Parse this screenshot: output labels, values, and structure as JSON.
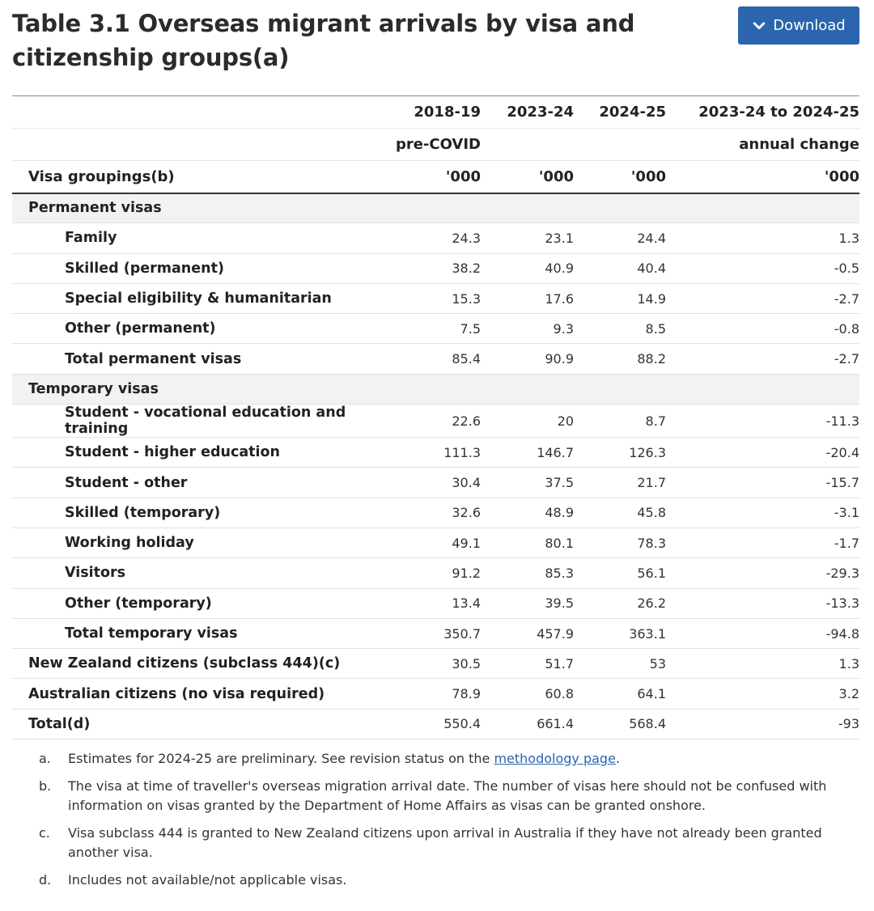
{
  "title": "Table 3.1 Overseas migrant arrivals by visa and citizenship groups(a)",
  "download": {
    "label": "Download",
    "icon": "chevron-down-icon"
  },
  "header": {
    "years": [
      "2018-19",
      "2023-24",
      "2024-25",
      "2023-24 to 2024-25"
    ],
    "sub": [
      "pre-COVID",
      "",
      "",
      "annual change"
    ],
    "row_label": "Visa groupings(b)",
    "units": [
      "'000",
      "'000",
      "'000",
      "'000"
    ]
  },
  "rows": [
    {
      "label": "Permanent visas",
      "kind": "section",
      "values": [
        "",
        "",
        "",
        ""
      ]
    },
    {
      "label": "Family",
      "kind": "item",
      "values": [
        "24.3",
        "23.1",
        "24.4",
        "1.3"
      ]
    },
    {
      "label": "Skilled (permanent)",
      "kind": "item",
      "values": [
        "38.2",
        "40.9",
        "40.4",
        "-0.5"
      ]
    },
    {
      "label": "Special eligibility & humanitarian",
      "kind": "item",
      "values": [
        "15.3",
        "17.6",
        "14.9",
        "-2.7"
      ]
    },
    {
      "label": "Other (permanent)",
      "kind": "item",
      "values": [
        "7.5",
        "9.3",
        "8.5",
        "-0.8"
      ]
    },
    {
      "label": "Total permanent visas",
      "kind": "item",
      "values": [
        "85.4",
        "90.9",
        "88.2",
        "-2.7"
      ]
    },
    {
      "label": "Temporary visas",
      "kind": "section",
      "values": [
        "",
        "",
        "",
        ""
      ]
    },
    {
      "label": "Student - vocational education and training",
      "kind": "item",
      "values": [
        "22.6",
        "20",
        "8.7",
        "-11.3"
      ]
    },
    {
      "label": "Student - higher education",
      "kind": "item",
      "values": [
        "111.3",
        "146.7",
        "126.3",
        "-20.4"
      ]
    },
    {
      "label": "Student - other",
      "kind": "item",
      "values": [
        "30.4",
        "37.5",
        "21.7",
        "-15.7"
      ]
    },
    {
      "label": "Skilled (temporary)",
      "kind": "item",
      "values": [
        "32.6",
        "48.9",
        "45.8",
        "-3.1"
      ]
    },
    {
      "label": "Working holiday",
      "kind": "item",
      "values": [
        "49.1",
        "80.1",
        "78.3",
        "-1.7"
      ]
    },
    {
      "label": "Visitors",
      "kind": "item",
      "values": [
        "91.2",
        "85.3",
        "56.1",
        "-29.3"
      ]
    },
    {
      "label": "Other (temporary)",
      "kind": "item",
      "values": [
        "13.4",
        "39.5",
        "26.2",
        "-13.3"
      ]
    },
    {
      "label": "Total temporary visas",
      "kind": "item",
      "values": [
        "350.7",
        "457.9",
        "363.1",
        "-94.8"
      ]
    },
    {
      "label": "New Zealand citizens (subclass 444)(c)",
      "kind": "top",
      "values": [
        "30.5",
        "51.7",
        "53",
        "1.3"
      ]
    },
    {
      "label": "Australian citizens (no visa required)",
      "kind": "top",
      "values": [
        "78.9",
        "60.8",
        "64.1",
        "3.2"
      ]
    },
    {
      "label": "Total(d)",
      "kind": "top",
      "values": [
        "550.4",
        "661.4",
        "568.4",
        "-93"
      ]
    }
  ],
  "notes": [
    {
      "marker": "a.",
      "text": "Estimates for 2024-25 are preliminary. See revision status on the ",
      "link": "methodology page",
      "after": "."
    },
    {
      "marker": "b.",
      "text": "The visa at time of traveller's overseas migration arrival date. The number of visas here should not be confused with information on visas granted by the Department of Home Affairs as visas can be granted onshore."
    },
    {
      "marker": "c.",
      "text": "Visa subclass 444 is granted to New Zealand citizens upon arrival in Australia if they have not already been granted another visa."
    },
    {
      "marker": "d.",
      "text": "Includes not available/not applicable visas."
    }
  ]
}
